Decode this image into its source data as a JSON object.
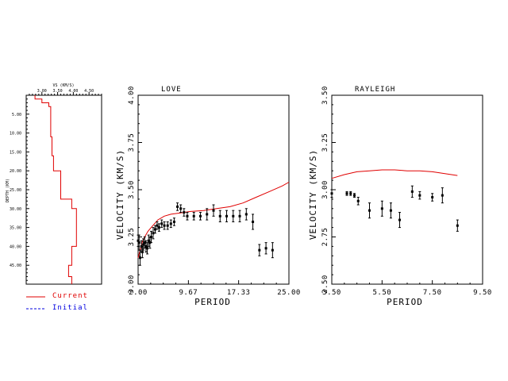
{
  "colors": {
    "current": "#e00000",
    "initial": "#0000e0",
    "axis": "#000000",
    "data": "#000000"
  },
  "legend": {
    "current_label": "Current",
    "initial_label": "Initial"
  },
  "chart_data": [
    {
      "type": "line",
      "name": "model",
      "xlabel": "VS (KM/S)",
      "ylabel": "DEPTH (KM)",
      "x_ticks": [
        "3.00",
        "3.50",
        "4.00",
        "4.50"
      ],
      "x_tick_values": [
        3.0,
        3.5,
        4.0,
        4.5
      ],
      "y_ticks": [
        "5.00",
        "10.00",
        "15.00",
        "20.00",
        "25.00",
        "30.00",
        "35.00",
        "40.00",
        "45.00"
      ],
      "y_tick_values": [
        5,
        10,
        15,
        20,
        25,
        30,
        35,
        40,
        45
      ],
      "xlim": [
        2.5,
        4.9
      ],
      "ylim": [
        0,
        50
      ],
      "current_model": {
        "vs": [
          2.78,
          2.78,
          3.0,
          3.0,
          3.22,
          3.22,
          3.28,
          3.28,
          3.32,
          3.32,
          3.37,
          3.37,
          3.6,
          3.6,
          3.95,
          3.95,
          4.1,
          4.1,
          3.95,
          3.95,
          3.85,
          3.85,
          3.95,
          3.95
        ],
        "depth": [
          0,
          1,
          1,
          2,
          2,
          3,
          3,
          11,
          11,
          16,
          16,
          20,
          20,
          27.5,
          27.5,
          30,
          30,
          40,
          40,
          45,
          45,
          48,
          48,
          50
        ]
      }
    },
    {
      "type": "scatter",
      "name": "love",
      "title": "LOVE",
      "xlabel": "PERIOD",
      "ylabel": "VELOCITY (KM/S)",
      "x_ticks": [
        "2.00",
        "9.67",
        "17.33",
        "25.00"
      ],
      "x_tick_values": [
        2.0,
        9.67,
        17.33,
        25.0
      ],
      "y_ticks": [
        "3.00",
        "3.25",
        "3.50",
        "3.75",
        "4.00"
      ],
      "y_tick_values": [
        3.0,
        3.25,
        3.5,
        3.75,
        4.0
      ],
      "xlim": [
        2.0,
        25.0
      ],
      "ylim": [
        3.0,
        4.0
      ],
      "observed": {
        "period": [
          2.0,
          2.15,
          2.3,
          2.5,
          2.65,
          2.8,
          3.0,
          3.2,
          3.4,
          3.6,
          3.8,
          4.0,
          4.3,
          4.6,
          4.9,
          5.2,
          5.6,
          6.0,
          6.5,
          7.0,
          7.5,
          8.0,
          8.5,
          9.0,
          9.5,
          10.5,
          11.5,
          12.5,
          13.5,
          14.5,
          15.5,
          16.5,
          17.5,
          18.5,
          19.5,
          20.5,
          21.5,
          22.5
        ],
        "velocity": [
          3.23,
          3.22,
          3.14,
          3.2,
          3.17,
          3.21,
          3.22,
          3.2,
          3.19,
          3.23,
          3.22,
          3.25,
          3.27,
          3.29,
          3.31,
          3.3,
          3.32,
          3.31,
          3.31,
          3.32,
          3.33,
          3.41,
          3.4,
          3.38,
          3.36,
          3.36,
          3.36,
          3.37,
          3.39,
          3.36,
          3.36,
          3.36,
          3.36,
          3.37,
          3.33,
          3.18,
          3.19,
          3.18
        ],
        "error": [
          0.03,
          0.04,
          0.04,
          0.03,
          0.03,
          0.03,
          0.03,
          0.03,
          0.03,
          0.03,
          0.03,
          0.03,
          0.03,
          0.02,
          0.02,
          0.02,
          0.02,
          0.02,
          0.02,
          0.02,
          0.02,
          0.02,
          0.02,
          0.02,
          0.02,
          0.02,
          0.02,
          0.03,
          0.03,
          0.03,
          0.03,
          0.03,
          0.03,
          0.03,
          0.04,
          0.03,
          0.03,
          0.04
        ]
      },
      "predicted": {
        "period": [
          2.0,
          2.3,
          2.6,
          3.0,
          3.5,
          4.0,
          4.5,
          5.0,
          6.0,
          7.0,
          8.0,
          9.0,
          10.0,
          12.0,
          14.0,
          16.0,
          18.0,
          20.0,
          22.0,
          24.0,
          25.0
        ],
        "velocity": [
          3.14,
          3.18,
          3.22,
          3.25,
          3.28,
          3.3,
          3.32,
          3.34,
          3.36,
          3.37,
          3.375,
          3.38,
          3.385,
          3.39,
          3.4,
          3.41,
          3.43,
          3.46,
          3.49,
          3.52,
          3.54
        ]
      }
    },
    {
      "type": "scatter",
      "name": "rayleigh",
      "title": "RAYLEIGH",
      "xlabel": "PERIOD",
      "ylabel": "VELOCITY (KM/S)",
      "x_ticks": [
        "3.50",
        "5.50",
        "7.50",
        "9.50"
      ],
      "x_tick_values": [
        3.5,
        5.5,
        7.5,
        9.5
      ],
      "y_ticks": [
        "2.50",
        "2.75",
        "3.00",
        "3.25",
        "3.50"
      ],
      "y_tick_values": [
        2.5,
        2.75,
        3.0,
        3.25,
        3.5
      ],
      "xlim": [
        3.5,
        9.5
      ],
      "ylim": [
        2.5,
        3.5
      ],
      "observed": {
        "period": [
          3.5,
          4.1,
          4.25,
          4.4,
          4.55,
          5.0,
          5.5,
          5.85,
          6.2,
          6.7,
          7.0,
          7.5,
          7.9,
          8.5
        ],
        "velocity": [
          2.98,
          2.98,
          2.98,
          2.97,
          2.94,
          2.89,
          2.9,
          2.89,
          2.84,
          2.99,
          2.97,
          2.96,
          2.97,
          2.81
        ],
        "error": [
          0.02,
          0.01,
          0.01,
          0.01,
          0.02,
          0.04,
          0.04,
          0.04,
          0.04,
          0.03,
          0.02,
          0.02,
          0.04,
          0.03
        ]
      },
      "predicted": {
        "period": [
          3.5,
          4.0,
          4.5,
          5.0,
          5.5,
          6.0,
          6.5,
          7.0,
          7.5,
          8.0,
          8.5
        ],
        "velocity": [
          3.06,
          3.08,
          3.095,
          3.1,
          3.105,
          3.105,
          3.1,
          3.1,
          3.095,
          3.085,
          3.075
        ]
      }
    }
  ]
}
